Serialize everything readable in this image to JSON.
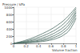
{
  "chart_data": {
    "type": "line",
    "xlabel": "Volume fraction",
    "ylabel": "Pressure / kPa",
    "x": [
      0,
      0.1,
      0.2,
      0.3,
      0.4,
      0.5,
      0.6,
      0.7,
      0.8,
      0.9,
      1.0
    ],
    "series": [
      {
        "color": "#4a6b62",
        "values": [
          0,
          40,
          90,
          150,
          220,
          300,
          390,
          500,
          630,
          800,
          1000
        ]
      },
      {
        "color": "#4a6b62",
        "values": [
          0,
          30,
          65,
          110,
          165,
          230,
          310,
          410,
          540,
          720,
          960
        ]
      },
      {
        "color": "#4a6b62",
        "values": [
          0,
          20,
          45,
          80,
          120,
          170,
          240,
          330,
          450,
          630,
          900
        ]
      },
      {
        "color": "#4a6b62",
        "values": [
          0,
          15,
          32,
          55,
          85,
          125,
          180,
          260,
          370,
          550,
          850
        ]
      },
      {
        "color": "#4a6b62",
        "values": [
          0,
          10,
          22,
          38,
          60,
          90,
          135,
          200,
          300,
          470,
          780
        ]
      },
      {
        "color": "#4a6b62",
        "values": [
          0,
          6,
          14,
          25,
          40,
          62,
          95,
          145,
          230,
          380,
          700
        ]
      }
    ],
    "xlim": [
      0,
      1.0
    ],
    "xticks": [
      0,
      0.2,
      0.4,
      0.6,
      0.8,
      1.0
    ],
    "ylim": [
      0,
      1000
    ],
    "yticks": [
      0,
      200,
      400,
      600,
      800,
      1000
    ],
    "grid": true
  }
}
